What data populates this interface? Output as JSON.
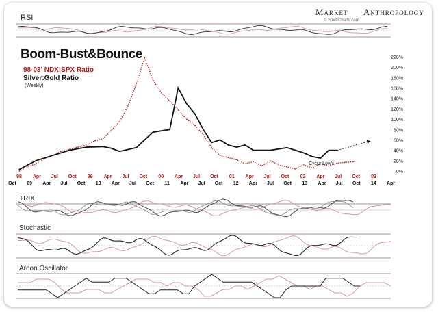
{
  "brand": {
    "word1": "Market",
    "word2": "Anthropology",
    "credit": "© StockCharts.com",
    "logo_icon": "dna-helix-icon"
  },
  "panels": {
    "rsi_label": "RSI",
    "trix_label": "TRIX",
    "stoch_label": "Stochastic",
    "aroon_label": "Aroon Oscillator"
  },
  "colors": {
    "black_series": "#111111",
    "red_series": "#b01818",
    "red_light": "#d59a9a",
    "grid": "#8a6a6a",
    "axis_red": "#b01818"
  },
  "chart_data": {
    "type": "line",
    "title": "Boom-Bust&Bounce",
    "legend": [
      "98-03' NDX:SPX Ratio",
      "Silver:Gold Ratio",
      "(Weekly)"
    ],
    "annotation": "Cycle Low's",
    "ylim": [
      0,
      220
    ],
    "y_ticks": [
      "220%",
      "200%",
      "180%",
      "160%",
      "140%",
      "120%",
      "100%",
      "80%",
      "60%",
      "40%",
      "20%",
      "0%"
    ],
    "x_ticks_black": [
      "Oct",
      "09",
      "Apr",
      "Jul",
      "Oct",
      "10",
      "Apr",
      "Jul",
      "Oct",
      "11",
      "Apr",
      "Jul",
      "Oct",
      "12",
      "Apr",
      "Jul",
      "Oct",
      "13",
      "Apr",
      "Jul",
      "Oct",
      "14",
      "Apr"
    ],
    "x_ticks_red": [
      "98",
      "Apr",
      "Jul",
      "Oct",
      "99",
      "Apr",
      "Jul",
      "Oct",
      "00",
      "Apr",
      "Jul",
      "Oct",
      "01",
      "Apr",
      "Jul",
      "Oct",
      "02",
      "Apr",
      "Jul",
      "Oct",
      "03"
    ],
    "series": [
      {
        "name": "98-03' NDX:SPX Ratio",
        "style": "dotted",
        "x": [
          0,
          0.5,
          1,
          1.5,
          2,
          2.5,
          3,
          3.5,
          4,
          4.5,
          5,
          5.5,
          6,
          6.5,
          7,
          7.5,
          8,
          8.5,
          9,
          9.5,
          10,
          10.5,
          11,
          11.5,
          12,
          12.5,
          13,
          13.5,
          14,
          14.5,
          15,
          15.5,
          16,
          16.5,
          17,
          17.5,
          18,
          18.5,
          19,
          19.5,
          20
        ],
        "values": [
          0,
          8,
          14,
          24,
          30,
          38,
          42,
          46,
          50,
          58,
          62,
          78,
          95,
          125,
          168,
          218,
          175,
          150,
          135,
          118,
          100,
          88,
          70,
          45,
          30,
          26,
          22,
          14,
          18,
          10,
          20,
          12,
          8,
          4,
          12,
          6,
          14,
          10,
          15,
          17,
          18
        ]
      },
      {
        "name": "Silver:Gold Ratio",
        "style": "solid",
        "x": [
          0,
          1,
          2,
          3,
          4,
          5,
          5.5,
          6,
          7,
          8,
          9,
          9.5,
          10,
          10.5,
          11,
          11.5,
          12,
          12.5,
          13,
          13.5,
          14,
          15,
          16,
          17,
          17.5,
          18,
          18.5,
          19
        ],
        "values": [
          3,
          20,
          30,
          40,
          46,
          47,
          44,
          38,
          45,
          75,
          80,
          160,
          130,
          110,
          80,
          55,
          60,
          50,
          46,
          50,
          40,
          40,
          45,
          35,
          28,
          25,
          40,
          40
        ]
      }
    ],
    "trend_arrow": {
      "from": [
        19,
        40
      ],
      "to": [
        21,
        58
      ]
    }
  }
}
